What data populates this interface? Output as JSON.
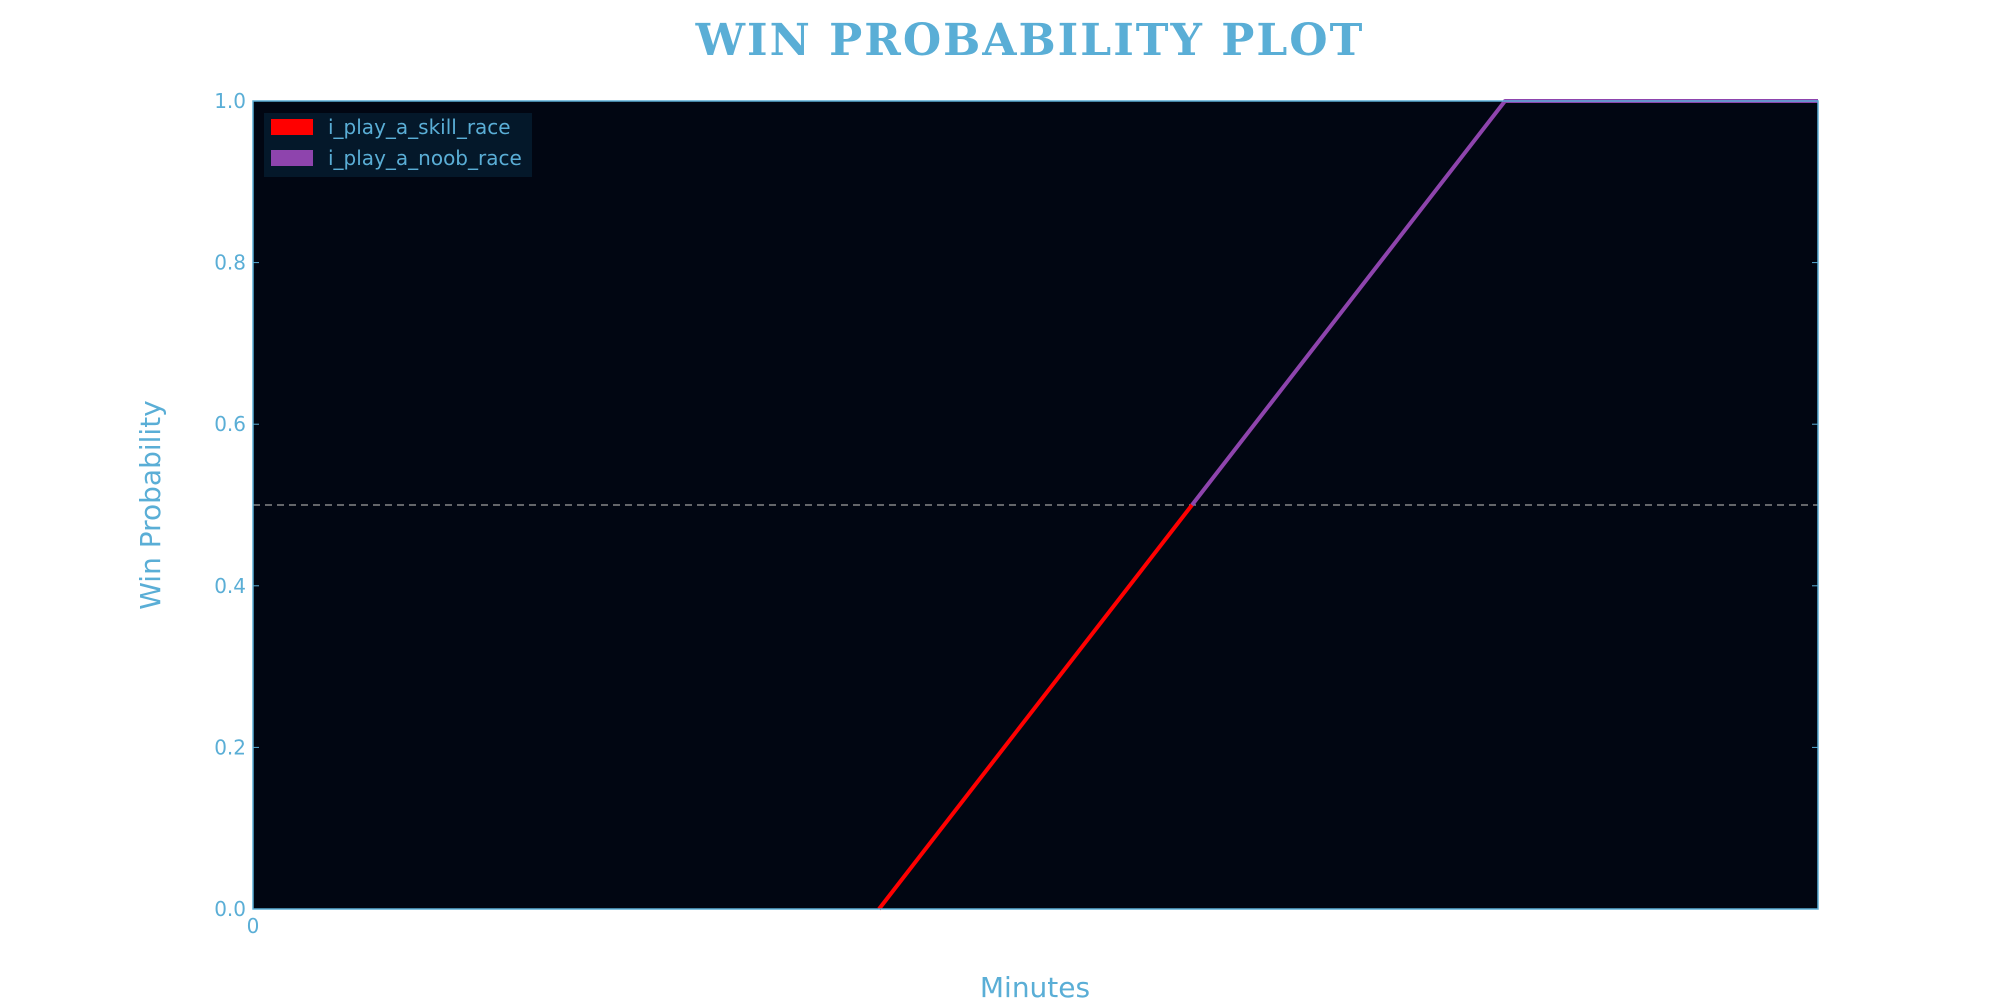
{
  "chart_data": {
    "type": "line",
    "title": "WIN PROBABILITY PLOT",
    "xlabel": "Minutes",
    "ylabel": "Win Probability",
    "xlim": [
      0,
      1
    ],
    "ylim": [
      0,
      1
    ],
    "x_tick_labels": [
      "0"
    ],
    "y_ticks": [
      0.0,
      0.2,
      0.4,
      0.6,
      0.8,
      1.0
    ],
    "y_tick_labels": [
      "0.0",
      "0.2",
      "0.4",
      "0.6",
      "0.8",
      "1.0"
    ],
    "reference_line": {
      "y": 0.5,
      "style": "dashed",
      "color": "#a0a0a0"
    },
    "grid": false,
    "legend_position": "top-left",
    "background_color": "#010612",
    "series": [
      {
        "name": "i_play_a_skill_race",
        "color": "#ff0000",
        "x": [
          0.4,
          0.6
        ],
        "y": [
          0.0,
          0.5
        ]
      },
      {
        "name": "i_play_a_noob_race",
        "color": "#8e44ad",
        "x": [
          0.6,
          0.8,
          1.0
        ],
        "y": [
          0.5,
          1.0,
          1.0
        ]
      }
    ]
  }
}
